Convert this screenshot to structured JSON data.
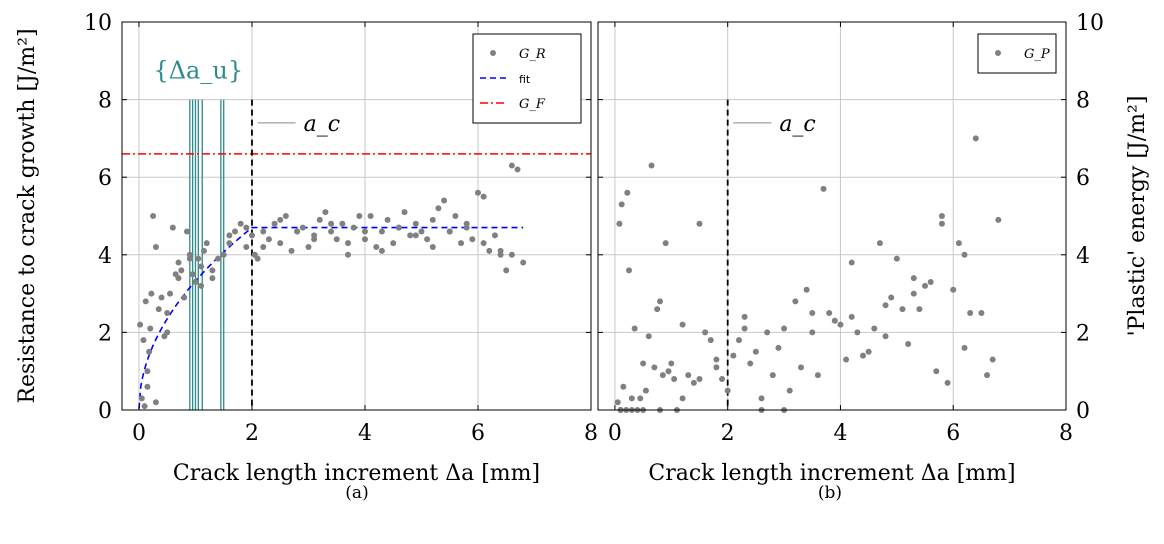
{
  "chart_data": [
    {
      "type": "scatter",
      "caption": "(a)",
      "xlabel": "Crack length increment Δa [mm]",
      "ylabel": "Resistance to crack growth [J/m²]",
      "xlim": [
        -0.3,
        8
      ],
      "ylim": [
        0,
        10
      ],
      "xticks": [
        0,
        2,
        4,
        6,
        8
      ],
      "yticks": [
        0,
        2,
        4,
        6,
        8,
        10
      ],
      "grid": true,
      "legend_position": "top-right",
      "legend": [
        {
          "label": "G_R",
          "kind": "marker",
          "color": "#808080"
        },
        {
          "label": "fit",
          "kind": "dashed",
          "color": "#0000ff"
        },
        {
          "label": "G_F",
          "kind": "dashdot",
          "color": "#ff0000"
        }
      ],
      "annotations": [
        {
          "text": "{Δa_u}",
          "color": "#2e8b8b",
          "x": 1.05,
          "y": 8.8
        },
        {
          "text": "a_c",
          "x": 2.4,
          "y": 7.4
        }
      ],
      "G_F": 6.6,
      "a_c": 2.0,
      "delta_au_lines": [
        0.9,
        0.95,
        1.0,
        1.05,
        1.12,
        1.45,
        1.5
      ],
      "fit": {
        "G_max": 4.7,
        "a_c": 2.0
      },
      "series": [
        {
          "name": "G_R",
          "color": "#808080",
          "x": [
            0.02,
            0.05,
            0.08,
            0.1,
            0.12,
            0.15,
            0.18,
            0.2,
            0.22,
            0.25,
            0.3,
            0.35,
            0.4,
            0.45,
            0.5,
            0.55,
            0.6,
            0.65,
            0.7,
            0.75,
            0.8,
            0.85,
            0.9,
            0.95,
            1.0,
            1.05,
            1.1,
            1.15,
            1.2,
            1.3,
            1.4,
            1.5,
            1.6,
            1.7,
            1.8,
            1.9,
            2.0,
            2.05,
            2.1,
            2.2,
            2.3,
            2.4,
            2.5,
            2.6,
            2.7,
            2.8,
            2.9,
            3.0,
            3.1,
            3.2,
            3.3,
            3.4,
            3.5,
            3.6,
            3.7,
            3.8,
            3.9,
            4.0,
            4.1,
            4.2,
            4.3,
            4.4,
            4.5,
            4.6,
            4.7,
            4.8,
            4.9,
            5.0,
            5.1,
            5.2,
            5.3,
            5.4,
            5.5,
            5.6,
            5.7,
            5.8,
            5.9,
            6.0,
            6.1,
            6.2,
            6.3,
            6.4,
            6.5,
            6.6,
            6.7,
            6.8,
            0.15,
            0.3,
            0.5,
            0.7,
            0.9,
            1.1,
            1.3,
            1.6,
            1.9,
            2.2,
            2.5,
            2.8,
            3.1,
            3.4,
            3.7,
            4.0,
            4.3,
            4.6,
            4.9,
            5.2,
            5.5,
            5.8,
            6.1,
            6.4,
            6.6
          ],
          "y": [
            2.2,
            0.3,
            1.8,
            0.1,
            2.8,
            0.6,
            1.5,
            2.1,
            3.0,
            5.0,
            4.2,
            2.6,
            2.9,
            1.9,
            2.5,
            3.0,
            4.7,
            3.5,
            3.8,
            3.6,
            2.9,
            4.6,
            4.0,
            3.5,
            3.3,
            3.9,
            3.2,
            4.1,
            4.3,
            3.6,
            3.9,
            4.0,
            4.3,
            4.6,
            4.8,
            4.2,
            4.5,
            4.0,
            3.9,
            4.6,
            4.4,
            4.8,
            4.3,
            5.0,
            4.1,
            4.6,
            4.7,
            4.2,
            4.5,
            4.9,
            5.1,
            4.6,
            4.4,
            4.8,
            4.0,
            4.7,
            5.0,
            4.4,
            5.0,
            4.2,
            4.6,
            4.9,
            4.3,
            4.7,
            5.1,
            4.5,
            4.8,
            4.6,
            4.4,
            4.9,
            5.2,
            5.4,
            4.6,
            5.0,
            4.3,
            4.7,
            4.4,
            5.6,
            5.5,
            4.1,
            4.5,
            4.0,
            3.6,
            6.3,
            6.2,
            3.8,
            1.0,
            0.2,
            2.0,
            3.4,
            3.9,
            3.7,
            3.4,
            4.5,
            4.7,
            4.2,
            4.9,
            4.6,
            4.4,
            4.8,
            4.3,
            4.6,
            4.1,
            4.7,
            4.5,
            4.2,
            4.6,
            4.8,
            4.3,
            4.1,
            4.0
          ]
        }
      ]
    },
    {
      "type": "scatter",
      "caption": "(b)",
      "xlabel": "Crack length increment Δa [mm]",
      "ylabel": "'Plastic' energy [J/m²]",
      "xlim": [
        -0.3,
        8
      ],
      "ylim": [
        0,
        10
      ],
      "xticks": [
        0,
        2,
        4,
        6,
        8
      ],
      "yticks": [
        0,
        2,
        4,
        6,
        8,
        10
      ],
      "grid": true,
      "legend_position": "top-right",
      "legend": [
        {
          "label": "G_P",
          "kind": "marker",
          "color": "#808080"
        }
      ],
      "annotations": [
        {
          "text": "a_c",
          "x": 2.4,
          "y": 7.4
        }
      ],
      "a_c": 2.0,
      "series": [
        {
          "name": "G_P",
          "color": "#808080",
          "x": [
            0.05,
            0.08,
            0.1,
            0.12,
            0.15,
            0.2,
            0.22,
            0.25,
            0.3,
            0.35,
            0.4,
            0.45,
            0.5,
            0.55,
            0.6,
            0.65,
            0.7,
            0.75,
            0.8,
            0.85,
            0.9,
            0.95,
            1.0,
            1.05,
            1.1,
            1.2,
            1.3,
            1.4,
            1.5,
            1.6,
            1.7,
            1.8,
            1.9,
            2.0,
            2.1,
            2.2,
            2.3,
            2.4,
            2.5,
            2.6,
            2.7,
            2.8,
            2.9,
            3.0,
            3.1,
            3.2,
            3.3,
            3.4,
            3.5,
            3.6,
            3.7,
            3.8,
            3.9,
            4.0,
            4.1,
            4.2,
            4.3,
            4.4,
            4.5,
            4.6,
            4.7,
            4.8,
            4.9,
            5.0,
            5.1,
            5.2,
            5.3,
            5.4,
            5.5,
            5.6,
            5.7,
            5.8,
            5.9,
            6.0,
            6.1,
            6.2,
            6.3,
            6.4,
            6.5,
            6.6,
            6.7,
            6.8,
            0.1,
            0.3,
            0.5,
            0.8,
            1.2,
            1.5,
            1.8,
            2.3,
            2.6,
            3.0,
            3.5,
            4.2,
            4.8,
            5.3,
            5.8,
            6.2
          ],
          "y": [
            0.2,
            4.8,
            0.0,
            5.3,
            0.6,
            0.0,
            5.6,
            3.6,
            0.3,
            2.1,
            0.0,
            0.3,
            1.2,
            0.5,
            1.9,
            6.3,
            1.1,
            2.6,
            2.8,
            0.9,
            4.3,
            1.0,
            1.2,
            0.8,
            0.0,
            2.2,
            0.9,
            0.7,
            4.8,
            2.0,
            1.8,
            1.3,
            0.8,
            0.5,
            1.4,
            1.8,
            2.4,
            1.2,
            1.5,
            0.3,
            2.0,
            0.9,
            1.6,
            2.1,
            0.5,
            2.8,
            1.1,
            3.1,
            2.5,
            0.9,
            5.7,
            2.5,
            2.3,
            2.2,
            1.3,
            3.8,
            2.0,
            1.4,
            1.5,
            2.1,
            4.3,
            2.7,
            2.9,
            3.9,
            2.6,
            1.7,
            3.4,
            2.6,
            3.2,
            3.3,
            1.0,
            5.0,
            0.7,
            3.1,
            4.3,
            4.0,
            2.5,
            7.0,
            2.5,
            0.9,
            1.3,
            4.9,
            0.0,
            0.0,
            0.0,
            0.0,
            0.3,
            0.8,
            1.1,
            2.1,
            0.0,
            0.0,
            2.0,
            2.4,
            1.9,
            3.0,
            4.8,
            1.6
          ]
        }
      ]
    }
  ]
}
